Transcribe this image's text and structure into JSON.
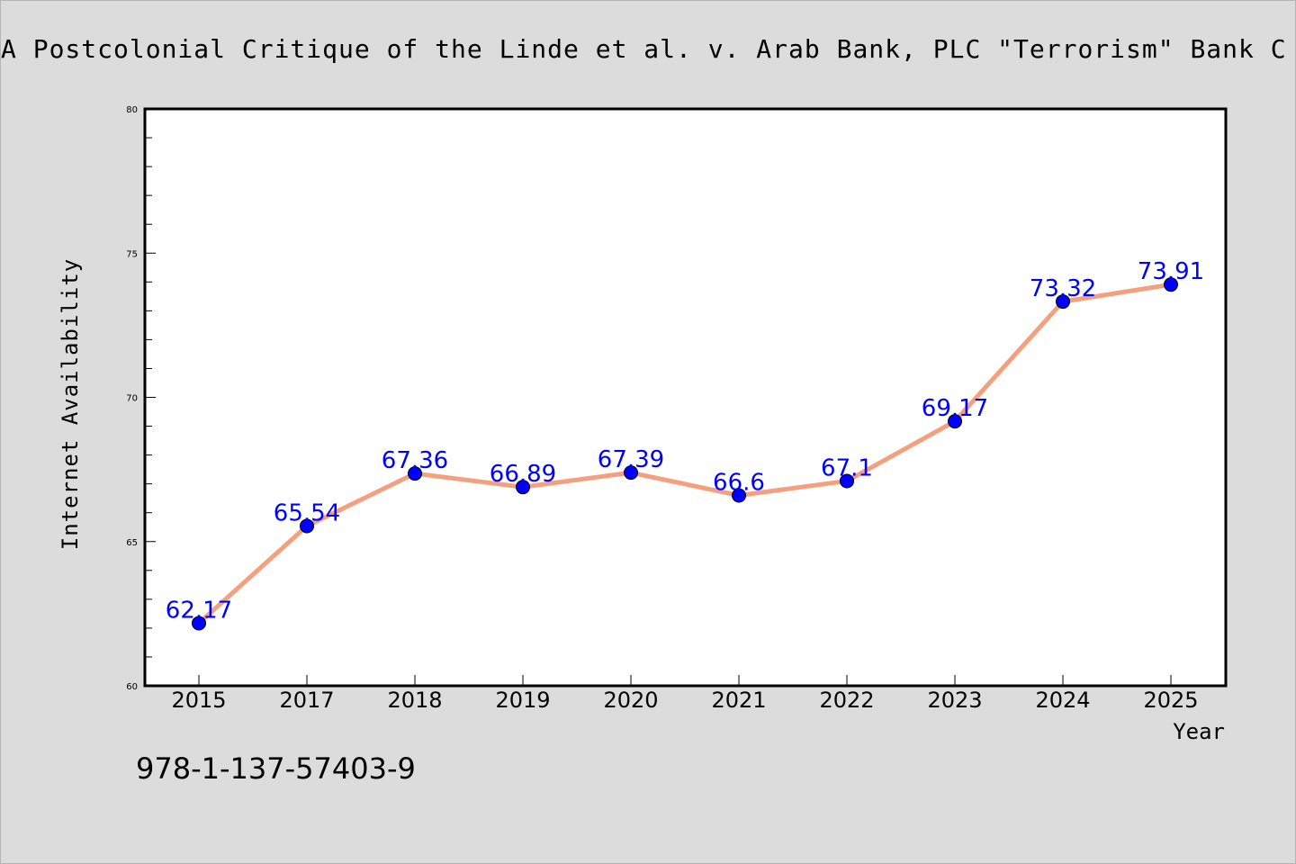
{
  "chart_data": {
    "type": "line",
    "title": "A Postcolonial Critique of the Linde et al. v. Arab Bank, PLC \"Terrorism\" Bank C",
    "xlabel": "Year",
    "ylabel": "Internet Availability",
    "categories": [
      "2015",
      "2017",
      "2018",
      "2019",
      "2020",
      "2021",
      "2022",
      "2023",
      "2024",
      "2025"
    ],
    "series": [
      {
        "values": [
          62.17,
          65.54,
          67.36,
          66.89,
          67.39,
          66.6,
          67.1,
          69.17,
          73.32,
          73.91
        ]
      }
    ],
    "data_labels": [
      "62.17",
      "65.54",
      "67.36",
      "66.89",
      "67.39",
      "66.6",
      "67.1",
      "69.17",
      "73.32",
      "73.91"
    ],
    "ylim": [
      60,
      80
    ],
    "yticks": [
      "60",
      "65",
      "70",
      "75",
      "80"
    ],
    "grid": false,
    "line_color": "#f4a07e",
    "marker_color": "#0000ff",
    "label_color": "#0000ff",
    "annotation": "978-1-137-57403-9"
  }
}
